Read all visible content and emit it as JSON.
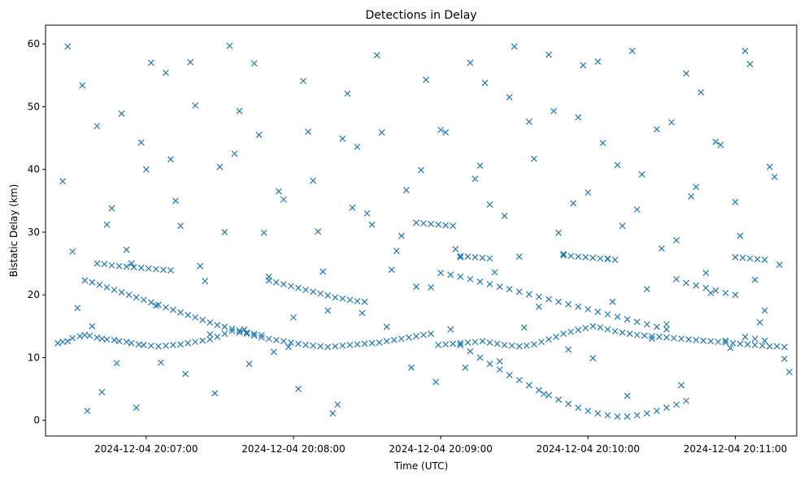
{
  "chart_data": {
    "type": "scatter",
    "title": "Detections in Delay",
    "xlabel": "Time (UTC)",
    "ylabel": "Bistatic Delay (km)",
    "x_unit": "HH:MM:SS after 2024-12-04 20:06:00",
    "xlim": [
      "2024-12-04 20:06:19",
      "2024-12-04 20:11:25"
    ],
    "ylim": [
      -2.5,
      63
    ],
    "x_ticks": [
      {
        "value": "2024-12-04 20:07:00",
        "label": "2024-12-04 20:07:00"
      },
      {
        "value": "2024-12-04 20:08:00",
        "label": "2024-12-04 20:08:00"
      },
      {
        "value": "2024-12-04 20:09:00",
        "label": "2024-12-04 20:09:00"
      },
      {
        "value": "2024-12-04 20:10:00",
        "label": "2024-12-04 20:10:00"
      },
      {
        "value": "2024-12-04 20:11:00",
        "label": "2024-12-04 20:11:00"
      }
    ],
    "y_ticks": [
      0,
      10,
      20,
      30,
      40,
      50,
      60
    ],
    "marker": "x",
    "color": "#1f77b4",
    "grid": false,
    "legend": "none",
    "series": [
      {
        "x": [
          "20:06:24",
          "20:06:26",
          "20:06:28",
          "20:06:30",
          "20:06:33",
          "20:06:35",
          "20:06:37",
          "20:06:40",
          "20:06:42",
          "20:06:44",
          "20:06:47",
          "20:06:49",
          "20:06:52",
          "20:06:54",
          "20:06:57",
          "20:06:59",
          "20:07:02",
          "20:07:05",
          "20:07:08",
          "20:07:11",
          "20:07:14",
          "20:07:17",
          "20:07:20",
          "20:07:23",
          "20:07:26",
          "20:07:29",
          "20:07:32",
          "20:07:35",
          "20:07:38",
          "20:07:41",
          "20:07:44",
          "20:07:47",
          "20:07:50",
          "20:07:53",
          "20:07:56",
          "20:07:59",
          "20:08:02",
          "20:08:05",
          "20:08:08",
          "20:08:11",
          "20:08:14",
          "20:08:17",
          "20:08:20",
          "20:08:23",
          "20:08:26",
          "20:08:29",
          "20:08:32",
          "20:08:35",
          "20:08:38",
          "20:08:41",
          "20:08:44",
          "20:08:47",
          "20:08:50",
          "20:08:53",
          "20:08:56",
          "20:08:59",
          "20:09:02",
          "20:09:05",
          "20:09:08",
          "20:09:11",
          "20:09:14",
          "20:09:17",
          "20:09:20",
          "20:09:23",
          "20:09:26",
          "20:09:29",
          "20:09:32",
          "20:09:35",
          "20:09:38",
          "20:09:41",
          "20:09:44",
          "20:09:47",
          "20:09:50",
          "20:09:53",
          "20:09:56",
          "20:09:59",
          "20:10:02",
          "20:10:05",
          "20:10:08",
          "20:10:11",
          "20:10:14",
          "20:10:17",
          "20:10:20",
          "20:10:23",
          "20:10:26",
          "20:10:29",
          "20:10:32",
          "20:10:35",
          "20:10:38",
          "20:10:41",
          "20:10:44",
          "20:10:47",
          "20:10:50",
          "20:10:53",
          "20:10:56",
          "20:10:59",
          "20:11:02",
          "20:11:05",
          "20:11:08",
          "20:11:11",
          "20:11:14",
          "20:11:17",
          "20:11:20"
        ],
        "y": [
          12.3,
          12.5,
          12.6,
          13.1,
          13.4,
          13.6,
          13.5,
          13.2,
          13.0,
          12.9,
          12.8,
          12.6,
          12.5,
          12.3,
          12.1,
          12.0,
          11.9,
          11.8,
          11.9,
          12.0,
          12.1,
          12.3,
          12.5,
          12.7,
          12.9,
          13.3,
          13.8,
          14.2,
          14.0,
          13.8,
          13.5,
          13.2,
          13.0,
          12.8,
          12.6,
          12.4,
          12.2,
          12.0,
          11.9,
          11.8,
          11.7,
          11.8,
          11.9,
          12.0,
          12.1,
          12.2,
          12.3,
          12.4,
          12.6,
          12.8,
          13.0,
          13.2,
          13.4,
          13.6,
          13.8,
          12.0,
          12.1,
          12.2,
          12.3,
          12.4,
          12.5,
          12.6,
          12.4,
          12.2,
          12.0,
          11.9,
          11.8,
          11.9,
          12.1,
          12.5,
          12.9,
          13.3,
          13.8,
          14.1,
          14.4,
          14.7,
          15.0,
          14.8,
          14.5,
          14.2,
          14.0,
          13.8,
          13.6,
          13.5,
          13.4,
          13.3,
          13.2,
          13.1,
          13.0,
          12.9,
          12.8,
          12.7,
          12.6,
          12.5,
          12.4,
          12.3,
          12.2,
          12.1,
          12.0,
          11.9,
          11.8,
          11.8,
          11.7
        ]
      },
      {
        "x": [
          "20:06:35",
          "20:06:38",
          "20:06:41",
          "20:06:44",
          "20:06:47",
          "20:06:50",
          "20:06:53",
          "20:06:56",
          "20:06:59",
          "20:07:02",
          "20:07:05",
          "20:07:08",
          "20:07:11",
          "20:07:14",
          "20:07:17",
          "20:07:20",
          "20:07:23",
          "20:07:26",
          "20:07:29",
          "20:07:32",
          "20:07:35",
          "20:07:38",
          "20:07:41",
          "20:07:44",
          "20:07:47",
          "20:07:50",
          "20:07:53",
          "20:07:56",
          "20:07:59",
          "20:08:02",
          "20:08:05",
          "20:08:08",
          "20:08:11",
          "20:08:14",
          "20:08:17",
          "20:08:20",
          "20:08:23",
          "20:08:26",
          "20:08:29"
        ],
        "y": [
          22.3,
          22.0,
          21.6,
          21.2,
          20.8,
          20.4,
          20.0,
          19.6,
          19.2,
          18.8,
          18.4,
          18.0,
          17.6,
          17.2,
          16.8,
          16.4,
          16.0,
          15.6,
          15.2,
          14.9,
          14.6,
          14.3,
          14.0,
          13.8,
          13.6,
          22.3,
          22.0,
          21.7,
          21.4,
          21.1,
          20.8,
          20.5,
          20.2,
          19.9,
          19.6,
          19.4,
          19.2,
          19.0,
          18.9
        ]
      },
      {
        "x": [
          "20:09:00",
          "20:09:04",
          "20:09:08",
          "20:09:12",
          "20:09:16",
          "20:09:20",
          "20:09:24",
          "20:09:28",
          "20:09:32",
          "20:09:36",
          "20:09:40",
          "20:09:44",
          "20:09:48",
          "20:09:52",
          "20:09:56",
          "20:10:00",
          "20:10:04",
          "20:10:08",
          "20:10:12",
          "20:10:16",
          "20:10:20",
          "20:10:24",
          "20:10:28",
          "20:10:32",
          "20:10:36",
          "20:10:40",
          "20:10:44",
          "20:10:48",
          "20:10:52",
          "20:10:56",
          "20:11:00",
          "20:11:04",
          "20:11:08",
          "20:11:12"
        ],
        "y": [
          23.5,
          23.2,
          22.9,
          22.5,
          22.1,
          21.7,
          21.3,
          20.9,
          20.5,
          20.1,
          19.7,
          19.3,
          18.9,
          18.5,
          18.1,
          17.7,
          17.3,
          16.9,
          16.5,
          16.1,
          15.7,
          15.3,
          14.9,
          14.5,
          22.5,
          21.9,
          21.5,
          21.1,
          20.7,
          20.3,
          20.0,
          13.3,
          13.0,
          12.7
        ]
      },
      {
        "x": [
          "20:09:08",
          "20:09:12",
          "20:09:16",
          "20:09:20",
          "20:09:24",
          "20:09:28",
          "20:09:32",
          "20:09:36",
          "20:09:40",
          "20:09:44",
          "20:09:48",
          "20:09:52",
          "20:09:56",
          "20:10:00",
          "20:10:04",
          "20:10:08",
          "20:10:12",
          "20:10:16",
          "20:10:20",
          "20:10:24",
          "20:10:28",
          "20:10:32",
          "20:10:36",
          "20:10:40"
        ],
        "y": [
          12.0,
          11.0,
          10.0,
          9.0,
          8.1,
          7.2,
          6.4,
          5.6,
          4.8,
          4.0,
          3.3,
          2.6,
          2.0,
          1.5,
          1.1,
          0.8,
          0.6,
          0.6,
          0.8,
          1.1,
          1.5,
          2.0,
          2.5,
          3.1
        ]
      },
      {
        "x": [
          "20:06:26",
          "20:06:30",
          "20:06:34",
          "20:06:38",
          "20:06:42",
          "20:06:46",
          "20:06:50",
          "20:06:54",
          "20:06:58",
          "20:07:02",
          "20:07:06",
          "20:07:10",
          "20:07:14",
          "20:07:18",
          "20:07:22",
          "20:07:26",
          "20:07:30",
          "20:07:34",
          "20:07:38",
          "20:07:42",
          "20:07:46",
          "20:07:50",
          "20:07:54",
          "20:07:58",
          "20:08:02",
          "20:08:06",
          "20:08:10",
          "20:08:14",
          "20:08:18",
          "20:08:22",
          "20:08:26",
          "20:08:30",
          "20:08:34",
          "20:08:38",
          "20:08:42",
          "20:08:46",
          "20:08:50",
          "20:08:54",
          "20:08:58",
          "20:09:02",
          "20:09:06",
          "20:09:10",
          "20:09:14",
          "20:09:18",
          "20:09:22",
          "20:09:26",
          "20:09:30",
          "20:09:34",
          "20:09:38",
          "20:09:42",
          "20:09:46",
          "20:09:50",
          "20:09:54",
          "20:09:58",
          "20:10:02",
          "20:10:06",
          "20:10:10",
          "20:10:14",
          "20:10:18",
          "20:10:22",
          "20:10:26",
          "20:10:30",
          "20:10:34",
          "20:10:38",
          "20:10:42",
          "20:10:46",
          "20:10:50",
          "20:10:54",
          "20:10:58",
          "20:11:02",
          "20:11:06",
          "20:11:10",
          "20:11:14",
          "20:11:18",
          "20:11:22"
        ],
        "y": [
          38.1,
          26.9,
          53.4,
          15.0,
          4.5,
          33.8,
          48.9,
          25.0,
          44.3,
          57.0,
          9.2,
          41.6,
          31.0,
          57.1,
          24.6,
          13.7,
          40.4,
          59.7,
          49.3,
          9.0,
          45.5,
          22.9,
          36.5,
          11.7,
          5.0,
          46.0,
          30.1,
          17.5,
          2.5,
          52.1,
          43.6,
          33.0,
          58.2,
          14.9,
          27.0,
          36.7,
          21.3,
          54.3,
          6.1,
          45.9,
          27.3,
          8.4,
          38.5,
          53.8,
          23.6,
          32.6,
          59.6,
          14.8,
          41.7,
          4.2,
          49.3,
          26.5,
          34.6,
          56.6,
          9.9,
          44.2,
          18.9,
          31.0,
          58.9,
          39.2,
          13.0,
          27.4,
          47.5,
          5.6,
          35.7,
          52.3,
          20.3,
          43.9,
          11.5,
          29.4,
          56.8,
          15.6,
          40.4,
          24.8,
          7.7
        ]
      },
      {
        "x": [
          "20:06:28",
          "20:06:32",
          "20:06:36",
          "20:06:40",
          "20:06:44",
          "20:06:48",
          "20:06:52",
          "20:06:56",
          "20:07:00",
          "20:07:04",
          "20:07:08",
          "20:07:12",
          "20:07:16",
          "20:07:20",
          "20:07:24",
          "20:07:28",
          "20:07:32",
          "20:07:36",
          "20:07:40",
          "20:07:44",
          "20:07:48",
          "20:07:52",
          "20:07:56",
          "20:08:00",
          "20:08:04",
          "20:08:08",
          "20:08:12",
          "20:08:16",
          "20:08:20",
          "20:08:24",
          "20:08:28",
          "20:08:32",
          "20:08:36",
          "20:08:40",
          "20:08:44",
          "20:08:48",
          "20:08:52",
          "20:08:56",
          "20:09:00",
          "20:09:04",
          "20:09:08",
          "20:09:12",
          "20:09:16",
          "20:09:20",
          "20:09:24",
          "20:09:28",
          "20:09:32",
          "20:09:36",
          "20:09:40",
          "20:09:44",
          "20:09:48",
          "20:09:52",
          "20:09:56",
          "20:10:00",
          "20:10:04",
          "20:10:08",
          "20:10:12",
          "20:10:16",
          "20:10:20",
          "20:10:24",
          "20:10:28",
          "20:10:32",
          "20:10:36",
          "20:10:40",
          "20:10:44",
          "20:10:48",
          "20:10:52",
          "20:10:56",
          "20:11:00",
          "20:11:04",
          "20:11:08",
          "20:11:12",
          "20:11:16",
          "20:11:20"
        ],
        "y": [
          59.6,
          17.9,
          1.5,
          46.9,
          31.2,
          9.1,
          27.2,
          2.0,
          40.0,
          18.3,
          55.4,
          35.0,
          7.4,
          50.2,
          22.2,
          4.3,
          30.0,
          42.5,
          14.5,
          56.9,
          29.9,
          10.9,
          35.2,
          16.4,
          54.1,
          38.2,
          23.7,
          1.1,
          44.9,
          33.9,
          17.1,
          31.2,
          45.9,
          24.0,
          29.4,
          8.4,
          39.9,
          21.2,
          46.3,
          14.5,
          26.0,
          57.0,
          40.6,
          34.4,
          9.4,
          51.5,
          26.1,
          47.6,
          18.1,
          58.3,
          29.9,
          11.3,
          48.3,
          36.3,
          57.2,
          25.8,
          40.7,
          3.9,
          33.6,
          20.9,
          46.4,
          15.3,
          28.7,
          55.3,
          37.2,
          23.5,
          44.4,
          12.7,
          34.8,
          58.9,
          22.4,
          17.5,
          38.8,
          9.8
        ]
      },
      {
        "x": [
          "20:06:40",
          "20:06:43",
          "20:06:46",
          "20:06:49",
          "20:06:52",
          "20:06:55",
          "20:06:58",
          "20:07:01",
          "20:07:04",
          "20:07:07",
          "20:07:10",
          "20:08:50",
          "20:08:53",
          "20:08:56",
          "20:08:59",
          "20:09:02",
          "20:09:05",
          "20:09:08",
          "20:09:11",
          "20:09:14",
          "20:09:17",
          "20:09:20",
          "20:09:50",
          "20:09:53",
          "20:09:56",
          "20:09:59",
          "20:10:02",
          "20:10:05",
          "20:10:08",
          "20:10:11",
          "20:11:00",
          "20:11:03",
          "20:11:06",
          "20:11:09",
          "20:11:12"
        ],
        "y": [
          25.0,
          24.9,
          24.7,
          24.6,
          24.5,
          24.4,
          24.3,
          24.2,
          24.1,
          24.0,
          23.9,
          31.5,
          31.4,
          31.3,
          31.2,
          31.1,
          31.0,
          26.2,
          26.1,
          26.0,
          25.9,
          25.8,
          26.3,
          26.2,
          26.1,
          26.0,
          25.9,
          25.8,
          25.7,
          25.6,
          26.0,
          25.9,
          25.8,
          25.7,
          25.6
        ]
      }
    ]
  }
}
